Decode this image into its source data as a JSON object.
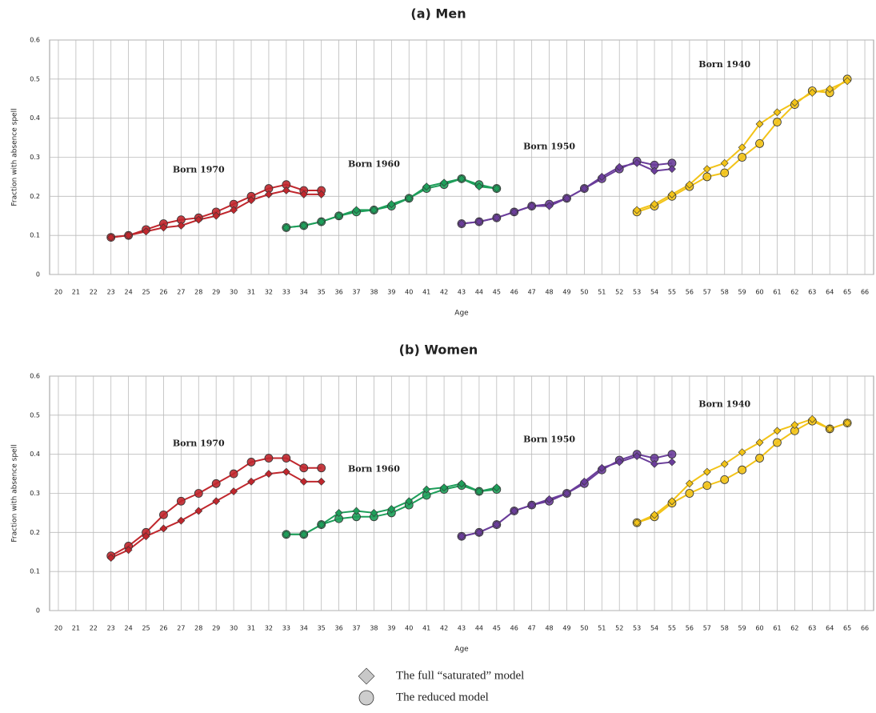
{
  "chart_data": [
    {
      "type": "line",
      "title": "(a) Men",
      "xlabel": "Age",
      "ylabel": "Fraction with absence spell",
      "xlim": [
        19.5,
        66.5
      ],
      "xticks": [
        20,
        21,
        22,
        23,
        24,
        25,
        26,
        27,
        28,
        29,
        30,
        31,
        32,
        33,
        34,
        35,
        36,
        37,
        38,
        39,
        40,
        41,
        42,
        43,
        44,
        45,
        46,
        47,
        48,
        49,
        50,
        51,
        52,
        53,
        54,
        55,
        56,
        57,
        58,
        59,
        60,
        61,
        62,
        63,
        64,
        65,
        66
      ],
      "ylim": [
        0,
        0.6
      ],
      "yticks": [
        0,
        0.1,
        0.2,
        0.3,
        0.4,
        0.5,
        0.6
      ],
      "grid": true,
      "cohorts": [
        {
          "label": "Born 1970",
          "color": "#c0272d",
          "x": [
            23,
            24,
            25,
            26,
            27,
            28,
            29,
            30,
            31,
            32,
            33,
            34,
            35
          ],
          "saturated": [
            0.095,
            0.1,
            0.11,
            0.12,
            0.125,
            0.14,
            0.15,
            0.165,
            0.19,
            0.205,
            0.215,
            0.205,
            0.205
          ],
          "reduced": [
            0.095,
            0.1,
            0.115,
            0.13,
            0.14,
            0.145,
            0.16,
            0.18,
            0.2,
            0.22,
            0.23,
            0.215,
            0.215
          ]
        },
        {
          "label": "Born 1960",
          "color": "#1e9e5a",
          "x": [
            33,
            34,
            35,
            36,
            37,
            38,
            39,
            40,
            41,
            42,
            43,
            44,
            45
          ],
          "saturated": [
            0.12,
            0.125,
            0.135,
            0.15,
            0.165,
            0.165,
            0.18,
            0.195,
            0.225,
            0.235,
            0.245,
            0.225,
            0.22
          ],
          "reduced": [
            0.12,
            0.125,
            0.135,
            0.15,
            0.16,
            0.165,
            0.175,
            0.195,
            0.22,
            0.23,
            0.245,
            0.23,
            0.22
          ]
        },
        {
          "label": "Born 1950",
          "color": "#6a3d9a",
          "x": [
            43,
            44,
            45,
            46,
            47,
            48,
            49,
            50,
            51,
            52,
            53,
            54,
            55
          ],
          "saturated": [
            0.13,
            0.135,
            0.145,
            0.16,
            0.175,
            0.175,
            0.195,
            0.22,
            0.25,
            0.275,
            0.285,
            0.265,
            0.27
          ],
          "reduced": [
            0.13,
            0.135,
            0.145,
            0.16,
            0.175,
            0.18,
            0.195,
            0.22,
            0.245,
            0.27,
            0.29,
            0.28,
            0.285
          ]
        },
        {
          "label": "Born 1940",
          "color": "#f2c318",
          "x": [
            53,
            54,
            55,
            56,
            57,
            58,
            59,
            60,
            61,
            62,
            63,
            64,
            65
          ],
          "saturated": [
            0.165,
            0.18,
            0.205,
            0.23,
            0.27,
            0.285,
            0.325,
            0.385,
            0.415,
            0.44,
            0.465,
            0.475,
            0.495
          ],
          "reduced": [
            0.16,
            0.175,
            0.2,
            0.225,
            0.25,
            0.26,
            0.3,
            0.335,
            0.39,
            0.435,
            0.47,
            0.465,
            0.5
          ]
        }
      ]
    },
    {
      "type": "line",
      "title": "(b) Women",
      "xlabel": "Age",
      "ylabel": "Fraction with absence spell",
      "xlim": [
        19.5,
        66.5
      ],
      "xticks": [
        20,
        21,
        22,
        23,
        24,
        25,
        26,
        27,
        28,
        29,
        30,
        31,
        32,
        33,
        34,
        35,
        36,
        37,
        38,
        39,
        40,
        41,
        42,
        43,
        44,
        45,
        46,
        47,
        48,
        49,
        50,
        51,
        52,
        53,
        54,
        55,
        56,
        57,
        58,
        59,
        60,
        61,
        62,
        63,
        64,
        65,
        66
      ],
      "ylim": [
        0,
        0.6
      ],
      "yticks": [
        0,
        0.1,
        0.2,
        0.3,
        0.4,
        0.5,
        0.6
      ],
      "grid": true,
      "cohorts": [
        {
          "label": "Born 1970",
          "color": "#c0272d",
          "x": [
            23,
            24,
            25,
            26,
            27,
            28,
            29,
            30,
            31,
            32,
            33,
            34,
            35
          ],
          "saturated": [
            0.135,
            0.155,
            0.19,
            0.21,
            0.23,
            0.255,
            0.28,
            0.305,
            0.33,
            0.35,
            0.355,
            0.33,
            0.33
          ],
          "reduced": [
            0.14,
            0.165,
            0.2,
            0.245,
            0.28,
            0.3,
            0.325,
            0.35,
            0.38,
            0.39,
            0.39,
            0.365,
            0.365
          ]
        },
        {
          "label": "Born 1960",
          "color": "#1e9e5a",
          "x": [
            33,
            34,
            35,
            36,
            37,
            38,
            39,
            40,
            41,
            42,
            43,
            44,
            45
          ],
          "saturated": [
            0.195,
            0.195,
            0.22,
            0.25,
            0.255,
            0.25,
            0.26,
            0.28,
            0.31,
            0.315,
            0.325,
            0.305,
            0.315
          ],
          "reduced": [
            0.195,
            0.195,
            0.22,
            0.235,
            0.24,
            0.24,
            0.25,
            0.27,
            0.295,
            0.31,
            0.32,
            0.305,
            0.31
          ]
        },
        {
          "label": "Born 1950",
          "color": "#6a3d9a",
          "x": [
            43,
            44,
            45,
            46,
            47,
            48,
            49,
            50,
            51,
            52,
            53,
            54,
            55
          ],
          "saturated": [
            0.19,
            0.2,
            0.22,
            0.255,
            0.27,
            0.285,
            0.3,
            0.33,
            0.365,
            0.38,
            0.395,
            0.375,
            0.38
          ],
          "reduced": [
            0.19,
            0.2,
            0.22,
            0.255,
            0.27,
            0.28,
            0.3,
            0.325,
            0.36,
            0.385,
            0.4,
            0.39,
            0.4
          ]
        },
        {
          "label": "Born 1940",
          "color": "#f2c318",
          "x": [
            53,
            54,
            55,
            56,
            57,
            58,
            59,
            60,
            61,
            62,
            63,
            64,
            65
          ],
          "saturated": [
            0.225,
            0.245,
            0.28,
            0.325,
            0.355,
            0.375,
            0.405,
            0.43,
            0.46,
            0.475,
            0.49,
            0.465,
            0.48
          ],
          "reduced": [
            0.225,
            0.24,
            0.275,
            0.3,
            0.32,
            0.335,
            0.36,
            0.39,
            0.43,
            0.46,
            0.485,
            0.465,
            0.48
          ]
        }
      ]
    }
  ],
  "legend": [
    {
      "label": "The full “saturated” model",
      "key": "saturated",
      "marker": "diamond"
    },
    {
      "label": "The reduced model",
      "key": "reduced",
      "marker": "circle"
    }
  ]
}
